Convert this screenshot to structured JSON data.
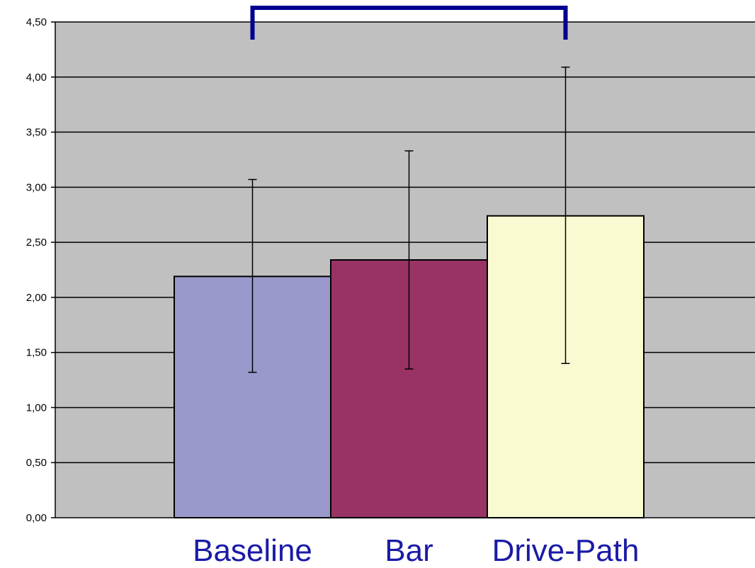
{
  "chart_data": {
    "type": "bar",
    "categories": [
      "Baseline",
      "Bar",
      "Drive-Path"
    ],
    "values": [
      2.19,
      2.34,
      2.74
    ],
    "error_high": [
      3.07,
      3.33,
      4.09
    ],
    "error_low": [
      1.32,
      1.35,
      1.4
    ],
    "ylim": [
      0,
      4.5
    ],
    "yticks": [
      "0,00",
      "0,50",
      "1,00",
      "1,50",
      "2,00",
      "2,50",
      "3,00",
      "3,50",
      "4,00",
      "4,50"
    ],
    "ytick_values": [
      0,
      0.5,
      1,
      1.5,
      2,
      2.5,
      3,
      3.5,
      4,
      4.5
    ],
    "grid": true,
    "significance_bracket": {
      "from": "Baseline",
      "to": "Drive-Path"
    },
    "colors": {
      "plot_background": "#c0c0c0",
      "bars": [
        "#9999cc",
        "#993366",
        "#fafad2"
      ],
      "category_label": "#1a1aa6",
      "bracket": "#000090"
    }
  }
}
